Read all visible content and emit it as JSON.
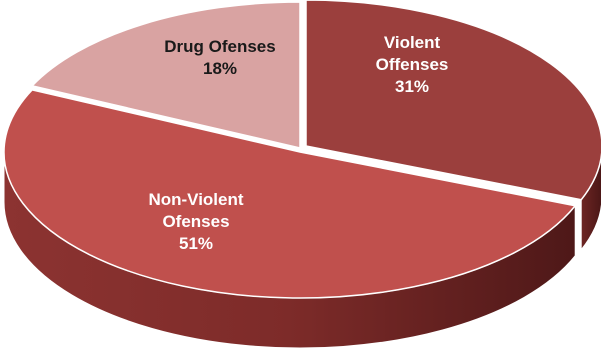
{
  "chart_data": {
    "type": "pie",
    "title": "",
    "slices": [
      {
        "label_lines": [
          "Violent",
          "Offenses"
        ],
        "value": 31,
        "value_label": "31%",
        "color": "#9b3f3d",
        "label_color": "#ffffff"
      },
      {
        "label_lines": [
          "Non-Violent",
          "Ofenses"
        ],
        "value": 51,
        "value_label": "51%",
        "color": "#c0504d",
        "label_color": "#ffffff"
      },
      {
        "label_lines": [
          "Drug Ofenses"
        ],
        "value": 18,
        "value_label": "18%",
        "color": "#d9a3a2",
        "label_color": "#1a1a1a"
      }
    ],
    "style": "3d-exploded-pie",
    "legend": "none"
  }
}
